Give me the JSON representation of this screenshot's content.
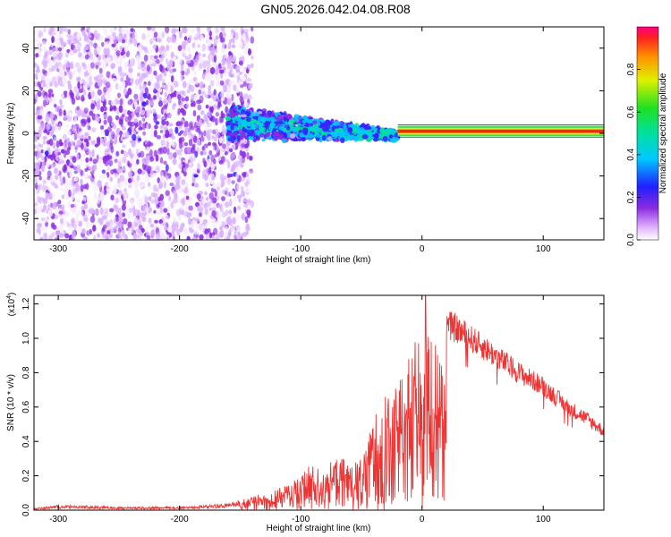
{
  "figure_title": "GN05.2026.042.04.08.R08",
  "chart_data": [
    {
      "type": "heatmap",
      "title": "GN05.2026.042.04.08.R08",
      "xlabel": "Height of straight line (km)",
      "ylabel": "Frequency (Hz)",
      "xlim": [
        -320,
        150
      ],
      "ylim": [
        -50,
        50
      ],
      "x_ticks": [
        -300,
        -200,
        -100,
        0,
        100
      ],
      "y_ticks": [
        -40,
        -20,
        0,
        20,
        40
      ],
      "colorbar": {
        "label": "Normalized spectral amplitude",
        "range": [
          0.0,
          1.0
        ],
        "ticks": [
          0.0,
          0.2,
          0.4,
          0.6,
          0.8
        ],
        "colormap": "rainbow (magenta-blue-cyan-green-yellow-red)"
      },
      "description_series": [
        {
          "name": "broadband noise",
          "x_range": [
            -320,
            -160
          ],
          "freq_range": [
            -50,
            50
          ],
          "amplitude": 0.1
        },
        {
          "name": "converging band",
          "x_range": [
            -160,
            -20
          ],
          "freq_range": [
            -10,
            15
          ],
          "amplitude": 0.25
        },
        {
          "name": "tone",
          "x_range": [
            -20,
            150
          ],
          "frequency": 1,
          "amplitude": 1.0
        }
      ]
    },
    {
      "type": "line",
      "xlabel": "Height of straight line (km)",
      "ylabel": "SNR (10 * v/v)",
      "scale_label": "(x10",
      "scale_exp": "4",
      "xlim": [
        -320,
        150
      ],
      "ylim": [
        0,
        1.25
      ],
      "x_ticks": [
        -300,
        -200,
        -100,
        0,
        100
      ],
      "y_ticks": [
        0.0,
        0.2,
        0.4,
        0.6,
        0.8,
        1.0,
        1.2
      ],
      "series": [
        {
          "name": "SNR",
          "color": "#ee3333",
          "envelope_x": [
            -320,
            -300,
            -250,
            -200,
            -180,
            -160,
            -150,
            -140,
            -120,
            -100,
            -90,
            -80,
            -70,
            -60,
            -50,
            -40,
            -30,
            -20,
            -10,
            0,
            10,
            20,
            30,
            40,
            50,
            60,
            70,
            80,
            90,
            100,
            110,
            120,
            130,
            140,
            150
          ],
          "envelope_y": [
            0.01,
            0.03,
            0.02,
            0.02,
            0.03,
            0.04,
            0.06,
            0.08,
            0.12,
            0.2,
            0.28,
            0.25,
            0.32,
            0.28,
            0.3,
            0.55,
            0.7,
            0.8,
            0.95,
            1.05,
            1.0,
            1.08,
            1.05,
            1.0,
            0.95,
            0.9,
            0.85,
            0.8,
            0.76,
            0.72,
            0.66,
            0.6,
            0.56,
            0.51,
            0.46
          ],
          "peak": {
            "x": 3,
            "y": 1.27
          }
        }
      ]
    }
  ],
  "colors": {
    "tone": "#ff2020",
    "noise": "#8a2be2",
    "line": "#ee3333"
  }
}
